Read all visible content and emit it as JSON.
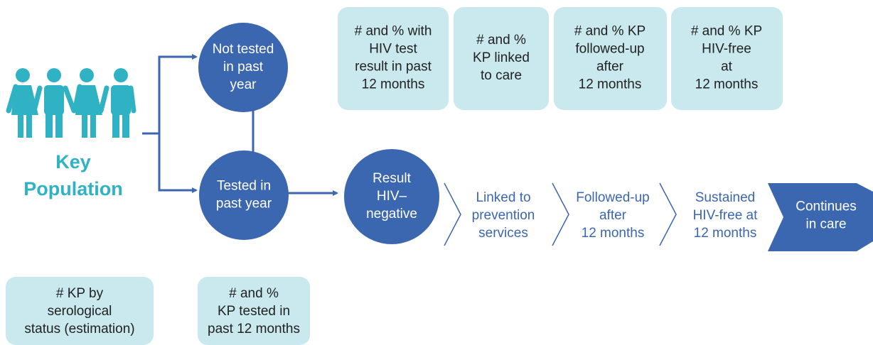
{
  "key_population": [
    "Key",
    "Population"
  ],
  "circles": [
    {
      "lines": [
        "Not tested",
        "in past",
        "year"
      ]
    },
    {
      "lines": [
        "Tested in",
        "past year"
      ]
    },
    {
      "lines": [
        "Result",
        "HIV–",
        "negative"
      ]
    }
  ],
  "steps": [
    {
      "lines": [
        "Linked to",
        "prevention",
        "services"
      ]
    },
    {
      "lines": [
        "Followed-up",
        "after",
        "12 months"
      ]
    },
    {
      "lines": [
        "Sustained",
        "HIV-free at",
        "12 months"
      ]
    },
    {
      "lines": [
        "Continues",
        "in care"
      ]
    }
  ],
  "indicators_top": [
    {
      "lines": [
        "# and % with",
        "HIV test",
        "result in past",
        "12 months"
      ]
    },
    {
      "lines": [
        "# and %",
        "KP linked",
        "to care"
      ]
    },
    {
      "lines": [
        "# and % KP",
        "followed-up",
        "after",
        "12 months"
      ]
    },
    {
      "lines": [
        "# and % KP",
        "HIV-free",
        "at",
        "12 months"
      ]
    }
  ],
  "indicators_bottom": [
    {
      "lines": [
        "# KP by",
        "serological",
        "status (estimation)"
      ]
    },
    {
      "lines": [
        "# and %",
        "KP tested in",
        "past 12 months"
      ]
    }
  ]
}
